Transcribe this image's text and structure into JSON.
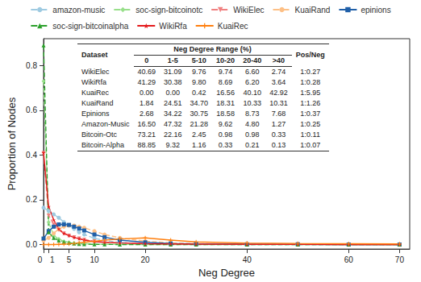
{
  "chart_data": {
    "type": "line",
    "x_label": "Neg Degree",
    "y_label": "Proportion of Nodes",
    "x": [
      0,
      1,
      2,
      3,
      4,
      5,
      6,
      7,
      8,
      10,
      12,
      15,
      20,
      25,
      30,
      40,
      50,
      60,
      70
    ],
    "series": [
      {
        "name": "amazon-music",
        "color": "#9ecae1",
        "marker": "circle",
        "line_style": "dashed",
        "values": [
          0.165,
          0.15,
          0.135,
          0.12,
          0.1,
          0.085,
          0.07,
          0.055,
          0.045,
          0.028,
          0.018,
          0.01,
          0.004,
          0.002,
          0.001,
          0,
          0,
          0,
          0
        ]
      },
      {
        "name": "soc-sign-bitcoinotc",
        "color": "#98df8a",
        "marker": "diamond",
        "line_style": "dashed",
        "values": [
          0.73,
          0.1,
          0.04,
          0.025,
          0.015,
          0.01,
          0.007,
          0.005,
          0.004,
          0.002,
          0.001,
          0.001,
          0,
          0,
          0,
          0,
          0,
          0,
          0
        ]
      },
      {
        "name": "WikiElec",
        "color": "#f08080",
        "marker": "triangle_down",
        "line_style": "dashed",
        "values": [
          0.41,
          0.13,
          0.09,
          0.065,
          0.05,
          0.04,
          0.033,
          0.027,
          0.022,
          0.015,
          0.011,
          0.008,
          0.005,
          0.003,
          0.002,
          0.001,
          0.001,
          0,
          0
        ]
      },
      {
        "name": "KuaiRand",
        "color": "#fdc086",
        "marker": "circle",
        "line_style": "dashed",
        "values": [
          0.018,
          0.03,
          0.05,
          0.07,
          0.08,
          0.085,
          0.085,
          0.08,
          0.075,
          0.06,
          0.045,
          0.03,
          0.015,
          0.008,
          0.004,
          0.002,
          0.001,
          0.001,
          0
        ]
      },
      {
        "name": "epinions",
        "color": "#1f5fa8",
        "marker": "square",
        "line_style": "solid",
        "values": [
          0.027,
          0.06,
          0.08,
          0.09,
          0.09,
          0.088,
          0.08,
          0.072,
          0.063,
          0.045,
          0.033,
          0.02,
          0.01,
          0.005,
          0.003,
          0.001,
          0.001,
          0,
          0
        ]
      },
      {
        "name": "soc-sign-bitcoinalpha",
        "color": "#2ca02c",
        "marker": "triangle",
        "line_style": "dashed",
        "values": [
          0.89,
          0.055,
          0.03,
          0.018,
          0.012,
          0.008,
          0.005,
          0.003,
          0.002,
          0.001,
          0.001,
          0,
          0,
          0,
          0,
          0,
          0,
          0,
          0
        ]
      },
      {
        "name": "WikiRfa",
        "color": "#e41a1c",
        "marker": "star",
        "line_style": "solid",
        "values": [
          0.41,
          0.17,
          0.11,
          0.07,
          0.05,
          0.04,
          0.032,
          0.026,
          0.02,
          0.013,
          0.01,
          0.007,
          0.004,
          0.003,
          0.002,
          0.001,
          0.001,
          0,
          0
        ]
      },
      {
        "name": "KuaiRec",
        "color": "#ff7f0e",
        "marker": "plus",
        "line_style": "solid",
        "values": [
          0,
          0,
          0,
          0.001,
          0.002,
          0.003,
          0.005,
          0.008,
          0.01,
          0.015,
          0.02,
          0.025,
          0.03,
          0.02,
          0.012,
          0.007,
          0.005,
          0.004,
          0.003
        ]
      }
    ],
    "xlim": [
      0,
      72
    ],
    "xticks": [
      0,
      1,
      5,
      10,
      20,
      40,
      60,
      70
    ],
    "ylim": [
      -0.02,
      0.92
    ],
    "yticks": [
      {
        "value": 0,
        "label": "0.0"
      },
      {
        "value": 0.2,
        "label": "0.2"
      },
      {
        "value": 0.4,
        "label": "0.4"
      },
      {
        "value": 0.6,
        "label": "0.6"
      },
      {
        "value": 0.8,
        "label": "0.8"
      }
    ],
    "grid": false,
    "legend": "top",
    "table": {
      "columns": [
        "Dataset",
        "0",
        "1-5",
        "5-10",
        "10-20",
        "20-40",
        ">40",
        "Pos/Neg"
      ],
      "group": "Neg Degree Range (%)",
      "rows": [
        [
          "WikiElec",
          "40.69",
          "31.09",
          "9.76",
          "9.74",
          "6.60",
          "2.74",
          "1:0.27"
        ],
        [
          "WikiRfa",
          "41.29",
          "30.38",
          "9.80",
          "8.69",
          "6.20",
          "3.64",
          "1:0.28"
        ],
        [
          "KuaiRec",
          "0.00",
          "0.00",
          "0.42",
          "16.56",
          "40.10",
          "42.92",
          "1:5.95"
        ],
        [
          "KuaiRand",
          "1.84",
          "24.51",
          "34.70",
          "18.31",
          "10.33",
          "10.31",
          "1:1.26"
        ],
        [
          "Epinions",
          "2.68",
          "34.22",
          "30.75",
          "18.58",
          "8.73",
          "7.68",
          "1:0.37"
        ],
        [
          "Amazon-Music",
          "16.50",
          "47.32",
          "21.28",
          "9.62",
          "4.80",
          "1.27",
          "1:0.25"
        ],
        [
          "Bitcoin-Otc",
          "73.21",
          "22.16",
          "2.45",
          "0.98",
          "0.98",
          "0.33",
          "1:0.11"
        ],
        [
          "Bitcoin-Alpha",
          "88.85",
          "9.32",
          "1.16",
          "0.33",
          "0.21",
          "0.13",
          "1:0.07"
        ]
      ]
    }
  }
}
